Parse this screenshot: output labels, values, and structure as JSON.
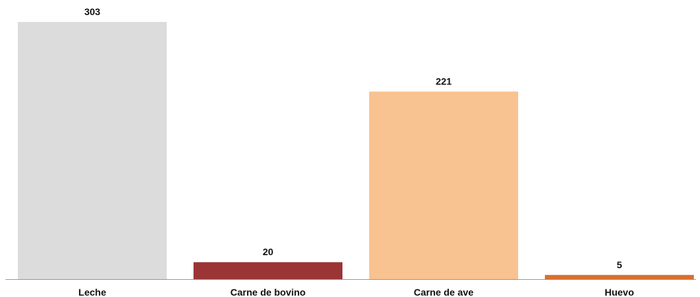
{
  "chart_data": {
    "type": "bar",
    "categories": [
      "Leche",
      "Carne de bovino",
      "Carne de ave",
      "Huevo"
    ],
    "values": [
      303,
      20,
      221,
      5
    ],
    "colors": [
      "#dcdcdd",
      "#9b3535",
      "#f8c291",
      "#d9702e"
    ]
  }
}
